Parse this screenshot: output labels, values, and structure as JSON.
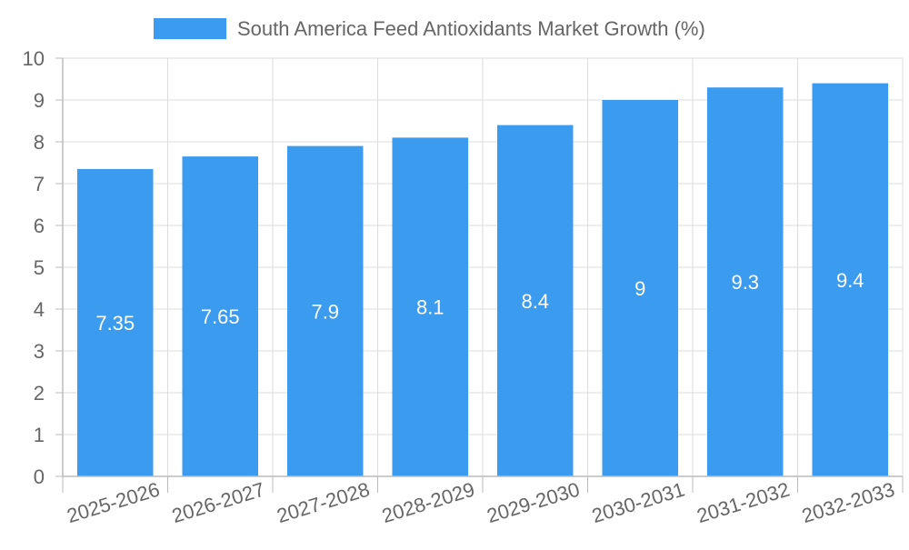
{
  "chart_data": {
    "type": "bar",
    "legend": {
      "label": "South America Feed Antioxidants Market Growth (%)",
      "position": "top"
    },
    "categories": [
      "2025-2026",
      "2026-2027",
      "2027-2028",
      "2028-2029",
      "2029-2030",
      "2030-2031",
      "2031-2032",
      "2032-2033"
    ],
    "series": [
      {
        "name": "South America Feed Antioxidants Market Growth (%)",
        "values": [
          7.35,
          7.65,
          7.9,
          8.1,
          8.4,
          9,
          9.3,
          9.4
        ],
        "color": "#3a9bef"
      }
    ],
    "data_labels": [
      "7.35",
      "7.65",
      "7.9",
      "8.1",
      "8.4",
      "9",
      "9.3",
      "9.4"
    ],
    "y_ticks": [
      "0",
      "1",
      "2",
      "3",
      "4",
      "5",
      "6",
      "7",
      "8",
      "9",
      "10"
    ],
    "ylim": [
      0,
      10
    ],
    "grid": true,
    "colors": {
      "bar": "#3a9bef",
      "grid": "#dddddd",
      "axis": "#bbbbbb",
      "tick_text": "#666666",
      "data_label": "#ffffff"
    }
  }
}
